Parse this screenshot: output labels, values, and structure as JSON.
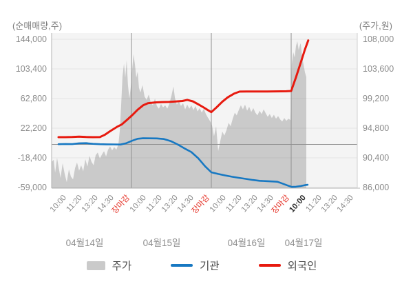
{
  "chart_data": {
    "type": "area+line combo (stock price with cumulative net buying)",
    "left_axis": {
      "title": "(순매매량,주)",
      "tick_labels": [
        "144,000",
        "103,400",
        "62,800",
        "22,200",
        "-18,400",
        "-59,000"
      ],
      "max": 144000,
      "min": -59000,
      "zero_line": 0
    },
    "right_axis": {
      "title": "(주가,원)",
      "tick_labels": [
        "108,000",
        "103,600",
        "99,200",
        "94,800",
        "90,400",
        "86,000"
      ],
      "max": 108000,
      "min": 86000
    },
    "x_axis": {
      "days": [
        {
          "label": "04월14일",
          "ticks": [
            "10:00",
            "11:20",
            "13:20",
            "14:30",
            "장마감"
          ]
        },
        {
          "label": "04월15일",
          "ticks": [
            "10:00",
            "11:20",
            "13:20",
            "14:30",
            "장마감"
          ]
        },
        {
          "label": "04월16일",
          "ticks": [
            "10:00",
            "11:20",
            "13:20",
            "14:30",
            "장마감"
          ]
        },
        {
          "label": "04월17일",
          "ticks": [
            "10:00",
            "11:20",
            "13:20",
            "14:30"
          ],
          "current_tick_index": 0
        }
      ],
      "close_tick_label": "장마감"
    },
    "series": {
      "price": {
        "name": "주가",
        "axis": "right",
        "kind": "area",
        "color": "#cacaca",
        "points": [
          [
            0.0,
            89800
          ],
          [
            0.13,
            90100
          ],
          [
            0.22,
            88200
          ],
          [
            0.34,
            90400
          ],
          [
            0.47,
            88600
          ],
          [
            0.56,
            87400
          ],
          [
            0.69,
            89600
          ],
          [
            0.82,
            88000
          ],
          [
            0.95,
            86800
          ],
          [
            1.08,
            88700
          ],
          [
            1.21,
            87600
          ],
          [
            1.34,
            87200
          ],
          [
            1.47,
            88900
          ],
          [
            1.59,
            89700
          ],
          [
            1.72,
            88500
          ],
          [
            1.85,
            89300
          ],
          [
            1.98,
            88400
          ],
          [
            2.11,
            90200
          ],
          [
            2.24,
            89100
          ],
          [
            2.37,
            90700
          ],
          [
            2.5,
            89800
          ],
          [
            2.63,
            89300
          ],
          [
            2.76,
            90800
          ],
          [
            2.89,
            91200
          ],
          [
            3.02,
            90300
          ],
          [
            3.15,
            90900
          ],
          [
            3.28,
            91400
          ],
          [
            3.41,
            90600
          ],
          [
            3.53,
            91600
          ],
          [
            3.66,
            92100
          ],
          [
            3.79,
            91500
          ],
          [
            3.92,
            92000
          ],
          [
            4.05,
            91600
          ],
          [
            4.18,
            92400
          ],
          [
            4.27,
            94500
          ],
          [
            4.35,
            98000
          ],
          [
            4.44,
            102500
          ],
          [
            4.53,
            104400
          ],
          [
            4.61,
            102300
          ],
          [
            4.7,
            104900
          ],
          [
            4.78,
            101200
          ],
          [
            4.87,
            99200
          ],
          [
            4.96,
            101000
          ],
          [
            5.04,
            103400
          ],
          [
            5.13,
            105800
          ],
          [
            5.22,
            104200
          ],
          [
            5.3,
            102300
          ],
          [
            5.39,
            103200
          ],
          [
            5.47,
            100800
          ],
          [
            5.56,
            100100
          ],
          [
            5.69,
            101200
          ],
          [
            5.82,
            99500
          ],
          [
            5.95,
            99000
          ],
          [
            6.08,
            99800
          ],
          [
            6.21,
            98600
          ],
          [
            6.34,
            98200
          ],
          [
            6.47,
            99200
          ],
          [
            6.59,
            98100
          ],
          [
            6.72,
            97700
          ],
          [
            6.85,
            98400
          ],
          [
            6.98,
            97900
          ],
          [
            7.11,
            98200
          ],
          [
            7.24,
            97700
          ],
          [
            7.37,
            98400
          ],
          [
            7.5,
            99600
          ],
          [
            7.63,
            101000
          ],
          [
            7.72,
            99300
          ],
          [
            7.84,
            98300
          ],
          [
            7.97,
            98800
          ],
          [
            8.1,
            98100
          ],
          [
            8.23,
            98500
          ],
          [
            8.36,
            97600
          ],
          [
            8.49,
            98300
          ],
          [
            8.62,
            97700
          ],
          [
            8.75,
            98200
          ],
          [
            8.88,
            97500
          ],
          [
            9.01,
            98100
          ],
          [
            9.14,
            97300
          ],
          [
            9.27,
            97800
          ],
          [
            9.4,
            97100
          ],
          [
            9.53,
            97700
          ],
          [
            9.66,
            96900
          ],
          [
            9.78,
            96400
          ],
          [
            9.91,
            95900
          ],
          [
            10.04,
            95300
          ],
          [
            10.17,
            93600
          ],
          [
            10.3,
            95100
          ],
          [
            10.43,
            91400
          ],
          [
            10.56,
            92900
          ],
          [
            10.69,
            94300
          ],
          [
            10.82,
            93700
          ],
          [
            10.95,
            94500
          ],
          [
            11.08,
            95600
          ],
          [
            11.21,
            95100
          ],
          [
            11.34,
            96200
          ],
          [
            11.47,
            97100
          ],
          [
            11.59,
            96700
          ],
          [
            11.72,
            97500
          ],
          [
            11.85,
            98200
          ],
          [
            11.98,
            97600
          ],
          [
            12.11,
            98300
          ],
          [
            12.24,
            97400
          ],
          [
            12.37,
            98000
          ],
          [
            12.5,
            97200
          ],
          [
            12.63,
            97800
          ],
          [
            12.76,
            97100
          ],
          [
            12.89,
            96700
          ],
          [
            13.02,
            97400
          ],
          [
            13.15,
            96900
          ],
          [
            13.28,
            97600
          ],
          [
            13.41,
            97000
          ],
          [
            13.53,
            96500
          ],
          [
            13.66,
            96900
          ],
          [
            13.79,
            96300
          ],
          [
            13.92,
            96800
          ],
          [
            14.05,
            96200
          ],
          [
            14.18,
            96600
          ],
          [
            14.31,
            96100
          ],
          [
            14.44,
            95800
          ],
          [
            14.57,
            96300
          ],
          [
            14.7,
            95900
          ],
          [
            14.83,
            96200
          ],
          [
            14.96,
            96000
          ],
          [
            15.04,
            104300
          ],
          [
            15.13,
            106100
          ],
          [
            15.22,
            105300
          ],
          [
            15.3,
            107000
          ],
          [
            15.39,
            107700
          ],
          [
            15.47,
            106400
          ],
          [
            15.56,
            107200
          ],
          [
            15.6,
            107400
          ],
          [
            15.69,
            105300
          ],
          [
            15.78,
            104200
          ],
          [
            15.86,
            103100
          ],
          [
            15.95,
            102400
          ]
        ]
      },
      "institution": {
        "name": "기관",
        "axis": "left",
        "kind": "line",
        "color": "#1778c2",
        "points": [
          [
            0.43,
            300
          ],
          [
            0.86,
            600
          ],
          [
            1.29,
            400
          ],
          [
            1.72,
            1500
          ],
          [
            2.16,
            1700
          ],
          [
            2.59,
            800
          ],
          [
            3.02,
            300
          ],
          [
            3.45,
            100
          ],
          [
            3.88,
            0
          ],
          [
            4.31,
            -200
          ],
          [
            4.66,
            1500
          ],
          [
            5.04,
            5000
          ],
          [
            5.39,
            7800
          ],
          [
            5.73,
            8400
          ],
          [
            6.16,
            8300
          ],
          [
            6.59,
            8200
          ],
          [
            7.03,
            7400
          ],
          [
            7.46,
            4500
          ],
          [
            7.89,
            0
          ],
          [
            8.32,
            -5500
          ],
          [
            8.75,
            -10500
          ],
          [
            9.18,
            -19000
          ],
          [
            9.61,
            -30000
          ],
          [
            10.0,
            -38200
          ],
          [
            10.43,
            -40500
          ],
          [
            10.86,
            -42500
          ],
          [
            11.29,
            -44300
          ],
          [
            11.72,
            -45800
          ],
          [
            12.16,
            -47200
          ],
          [
            12.59,
            -48700
          ],
          [
            13.02,
            -49800
          ],
          [
            13.45,
            -50300
          ],
          [
            13.88,
            -50800
          ],
          [
            14.14,
            -51200
          ],
          [
            14.44,
            -53500
          ],
          [
            14.74,
            -56000
          ],
          [
            15.04,
            -58200
          ],
          [
            15.3,
            -58000
          ],
          [
            15.6,
            -57000
          ],
          [
            15.86,
            -55800
          ],
          [
            16.03,
            -55300
          ]
        ]
      },
      "foreign": {
        "name": "외국인",
        "axis": "left",
        "kind": "line",
        "color": "#e71a0f",
        "points": [
          [
            0.43,
            9900
          ],
          [
            0.86,
            9900
          ],
          [
            1.29,
            10100
          ],
          [
            1.72,
            10600
          ],
          [
            2.16,
            10100
          ],
          [
            2.59,
            9900
          ],
          [
            3.02,
            10000
          ],
          [
            3.32,
            13000
          ],
          [
            3.66,
            18000
          ],
          [
            4.09,
            24000
          ],
          [
            4.4,
            27500
          ],
          [
            4.74,
            34000
          ],
          [
            5.09,
            41000
          ],
          [
            5.39,
            47500
          ],
          [
            5.73,
            53500
          ],
          [
            6.03,
            56500
          ],
          [
            6.47,
            57500
          ],
          [
            6.9,
            58000
          ],
          [
            7.33,
            58200
          ],
          [
            7.76,
            58800
          ],
          [
            8.19,
            59500
          ],
          [
            8.49,
            61000
          ],
          [
            8.84,
            59000
          ],
          [
            9.18,
            55000
          ],
          [
            9.53,
            50500
          ],
          [
            9.78,
            47000
          ],
          [
            10.0,
            44200
          ],
          [
            10.34,
            51000
          ],
          [
            10.69,
            58500
          ],
          [
            11.03,
            64500
          ],
          [
            11.42,
            69500
          ],
          [
            11.77,
            72300
          ],
          [
            12.2,
            72500
          ],
          [
            12.63,
            72500
          ],
          [
            13.06,
            72500
          ],
          [
            13.49,
            72500
          ],
          [
            13.92,
            72600
          ],
          [
            14.35,
            72700
          ],
          [
            14.7,
            72800
          ],
          [
            15.0,
            73200
          ],
          [
            15.3,
            92000
          ],
          [
            15.6,
            112000
          ],
          [
            15.86,
            130000
          ],
          [
            16.07,
            142500
          ]
        ]
      }
    },
    "legend": [
      {
        "series": "price",
        "label": "주가",
        "swatch": "area"
      },
      {
        "series": "institution",
        "label": "기관",
        "swatch": "line"
      },
      {
        "series": "foreign",
        "label": "외국인",
        "swatch": "line"
      }
    ],
    "colors": {
      "plot_background": "#f4f4f4",
      "grid_light": "rgba(0,0,0,0.06)",
      "grid_dark": "#909090",
      "axis_border": "#b3b3b3",
      "close_label_red": "#e5352a",
      "text_gray": "#8b8b8b"
    }
  }
}
